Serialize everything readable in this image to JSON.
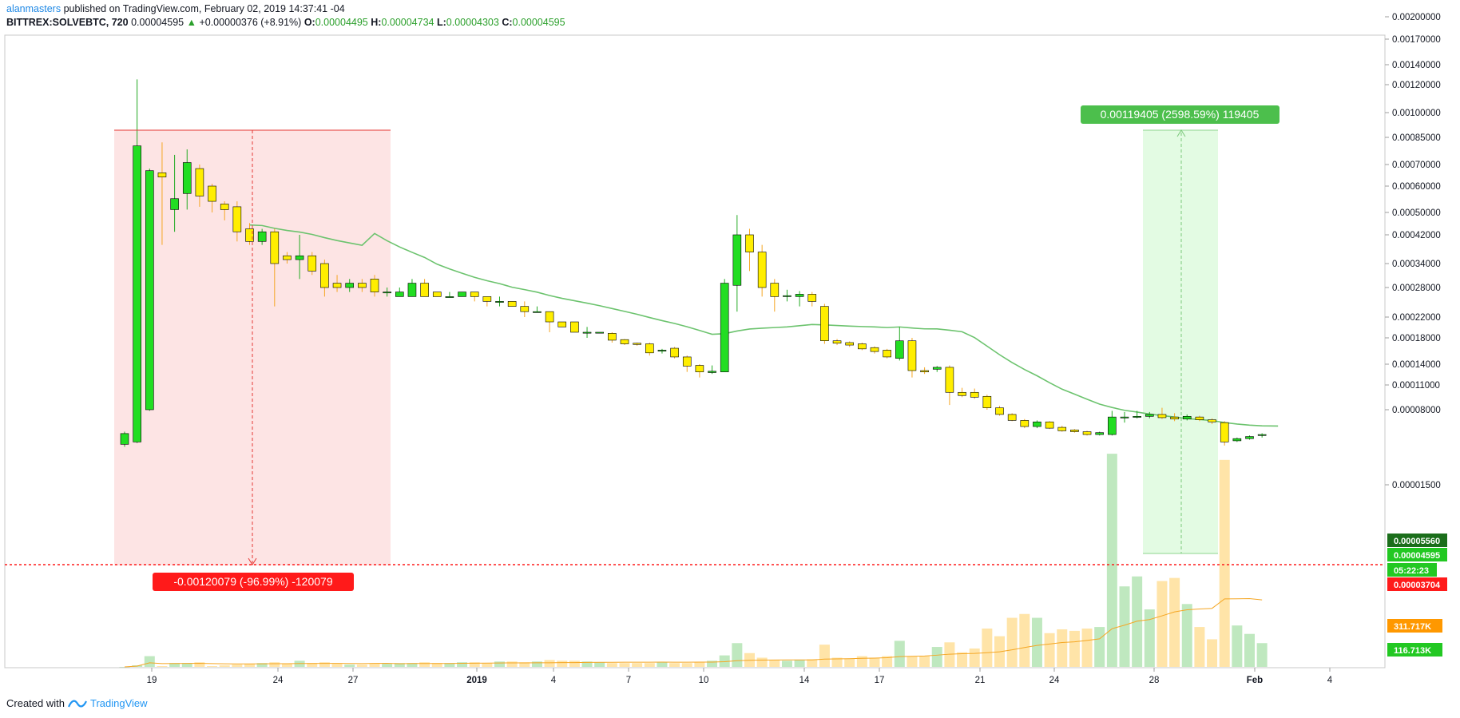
{
  "header": {
    "user": "alanmasters",
    "published_text": "published on TradingView.com, February 02, 2019 14:37:41 -04",
    "symbol": "BITTREX:SOLVEBTC, 720",
    "last": "0.00004595",
    "change": "+0.00000376 (+8.91%)",
    "o_label": "O:",
    "o_value": "0.00004495",
    "h_label": "H:",
    "h_value": "0.00004734",
    "l_label": "L:",
    "l_value": "0.00004303",
    "c_label": "C:",
    "c_value": "0.00004595"
  },
  "footer": {
    "created_with": "Created with",
    "brand": "TradingView"
  },
  "colors": {
    "up": "#22dd22",
    "down": "#ffee00",
    "down_wick": "#f5a623",
    "ma": "#6cc36e",
    "loss_fill": "#fde4e4",
    "loss_line": "#e53935",
    "gain_fill": "#e3fbe3",
    "red_tag": "#ff1a1a",
    "green_tag": "#22c822",
    "orange_tag": "#ff9800"
  },
  "chart_data": {
    "type": "candlestick",
    "y_scale": "log",
    "y_ticks": [
      "0.00200000",
      "0.00170000",
      "0.00140000",
      "0.00120000",
      "0.00100000",
      "0.00085000",
      "0.00070000",
      "0.00060000",
      "0.00050000",
      "0.00042000",
      "0.00034000",
      "0.00028000",
      "0.00022000",
      "0.00018000",
      "0.00014000",
      "0.00011000",
      "0.00008000",
      "0.00001500"
    ],
    "x_ticks": [
      "19",
      "24",
      "27",
      "2019",
      "4",
      "7",
      "10",
      "14",
      "17",
      "21",
      "24",
      "28",
      "Feb",
      "4"
    ],
    "price_tags": {
      "ma_value": "0.00005560",
      "last_price": "0.00004595",
      "countdown": "05:22:23",
      "line_price": "0.00003704",
      "volume_ma": "311.717K",
      "volume": "116.713K"
    },
    "measure_loss": "-0.00120079 (-96.99%) -120079",
    "measure_gain": "0.00119405 (2598.59%) 119405",
    "candles": [
      [
        3.7e-05,
        4.7e-05,
        3.5e-05,
        4.9e-05
      ],
      [
        3.9e-05,
        0.0008,
        3.8e-05,
        0.00125
      ],
      [
        8e-05,
        0.00067,
        7.8e-05,
        0.00068
      ],
      [
        0.00066,
        0.00064,
        0.00039,
        0.00082
      ],
      [
        0.00051,
        0.00055,
        0.00043,
        0.00075
      ],
      [
        0.00057,
        0.00071,
        0.00051,
        0.00078
      ],
      [
        0.00068,
        0.00056,
        0.00052,
        0.0007
      ],
      [
        0.0006,
        0.00054,
        0.0005,
        0.00061
      ],
      [
        0.00053,
        0.00051,
        0.00047,
        0.00054
      ],
      [
        0.00052,
        0.00043,
        0.0004,
        0.00054
      ],
      [
        0.00044,
        0.0004,
        0.00039,
        0.00046
      ],
      [
        0.0004,
        0.00043,
        0.00039,
        0.00044
      ],
      [
        0.00043,
        0.00034,
        0.00024,
        0.00044
      ],
      [
        0.00036,
        0.00035,
        0.00034,
        0.00037
      ],
      [
        0.00035,
        0.00036,
        0.0003,
        0.00042
      ],
      [
        0.00036,
        0.00032,
        0.00031,
        0.00037
      ],
      [
        0.00034,
        0.00028,
        0.00026,
        0.00035
      ],
      [
        0.00029,
        0.00028,
        0.00027,
        0.00031
      ],
      [
        0.00028,
        0.00029,
        0.00027,
        0.0003
      ],
      [
        0.00029,
        0.00028,
        0.00027,
        0.0003
      ],
      [
        0.0003,
        0.00027,
        0.00026,
        0.00031
      ],
      [
        0.00027,
        0.00027,
        0.00026,
        0.00028
      ],
      [
        0.00026,
        0.00027,
        0.00026,
        0.00028
      ],
      [
        0.00026,
        0.00029,
        0.00026,
        0.0003
      ],
      [
        0.00029,
        0.00026,
        0.00026,
        0.0003
      ],
      [
        0.00027,
        0.00026,
        0.00026,
        0.00027
      ],
      [
        0.00026,
        0.00026,
        0.00026,
        0.00027
      ],
      [
        0.00026,
        0.00027,
        0.00026,
        0.00027
      ],
      [
        0.00027,
        0.00026,
        0.00025,
        0.00027
      ],
      [
        0.00026,
        0.00025,
        0.00024,
        0.00026
      ],
      [
        0.00025,
        0.00025,
        0.00024,
        0.00026
      ],
      [
        0.00025,
        0.00024,
        0.00024,
        0.00025
      ],
      [
        0.00024,
        0.00023,
        0.00022,
        0.00025
      ],
      [
        0.00023,
        0.00023,
        0.00023,
        0.00024
      ],
      [
        0.00023,
        0.00021,
        0.00019,
        0.00023
      ],
      [
        0.00021,
        0.0002,
        0.0002,
        0.00021
      ],
      [
        0.00021,
        0.00019,
        0.00019,
        0.00021
      ],
      [
        0.00019,
        0.00019,
        0.00018,
        0.0002
      ],
      [
        0.00019,
        0.00019,
        0.00019,
        0.00019
      ],
      [
        0.000188,
        0.000176,
        0.000172,
        0.00019
      ],
      [
        0.000177,
        0.00017,
        0.000168,
        0.000178
      ],
      [
        0.000171,
        0.000169,
        0.000167,
        0.000172
      ],
      [
        0.00017,
        0.000156,
        0.000152,
        0.000172
      ],
      [
        0.000159,
        0.00016,
        0.000155,
        0.000162
      ],
      [
        0.000163,
        0.00015,
        0.000148,
        0.000165
      ],
      [
        0.00015,
        0.000137,
        0.000128,
        0.000152
      ],
      [
        0.000138,
        0.000128,
        0.00012,
        0.00014
      ],
      [
        0.000127,
        0.000129,
        0.000125,
        0.000138
      ],
      [
        0.000128,
        0.00029,
        0.000128,
        0.0003
      ],
      [
        0.000285,
        0.00042,
        0.00023,
        0.00049
      ],
      [
        0.00042,
        0.00037,
        0.00032,
        0.00044
      ],
      [
        0.00037,
        0.00028,
        0.00026,
        0.00039
      ],
      [
        0.00029,
        0.00026,
        0.00023,
        0.0003
      ],
      [
        0.000262,
        0.000262,
        0.00025,
        0.000275
      ],
      [
        0.00026,
        0.000265,
        0.00024,
        0.000272
      ],
      [
        0.000265,
        0.00025,
        0.00024,
        0.00027
      ],
      [
        0.00024,
        0.000175,
        0.00017,
        0.000245
      ],
      [
        0.000175,
        0.000171,
        0.000168,
        0.000178
      ],
      [
        0.000172,
        0.000168,
        0.000165,
        0.000174
      ],
      [
        0.00017,
        0.000162,
        0.00016,
        0.000172
      ],
      [
        0.000164,
        0.000158,
        0.000155,
        0.000166
      ],
      [
        0.00016,
        0.00015,
        0.000148,
        0.000162
      ],
      [
        0.000148,
        0.000175,
        0.000145,
        0.0002
      ],
      [
        0.000175,
        0.00013,
        0.00012,
        0.00018
      ],
      [
        0.00013,
        0.000128,
        0.000125,
        0.000135
      ],
      [
        0.000132,
        0.000135,
        0.000128,
        0.000137
      ],
      [
        0.000135,
        0.0001,
        8.5e-05,
        0.000138
      ],
      [
        0.0001,
        9.6e-05,
        9.4e-05,
        0.000106
      ],
      [
        0.0001,
        9.4e-05,
        9.2e-05,
        0.000105
      ],
      [
        9.5e-05,
        8.2e-05,
        8e-05,
        9.7e-05
      ],
      [
        8.2e-05,
        7.2e-05,
        7e-05,
        8.4e-05
      ],
      [
        7.2e-05,
        6.3e-05,
        6.2e-05,
        7.4e-05
      ],
      [
        6.3e-05,
        5.5e-05,
        5.3e-05,
        6.5e-05
      ],
      [
        5.5e-05,
        6.1e-05,
        5.3e-05,
        6.3e-05
      ],
      [
        6.1e-05,
        5.3e-05,
        5.2e-05,
        6.2e-05
      ],
      [
        5.4e-05,
        5e-05,
        4.9e-05,
        5.6e-05
      ],
      [
        5.1e-05,
        4.9e-05,
        4.8e-05,
        5.2e-05
      ],
      [
        4.9e-05,
        4.6e-05,
        4.5e-05,
        5e-05
      ],
      [
        4.6e-05,
        4.8e-05,
        4.5e-05,
        4.9e-05
      ],
      [
        4.6e-05,
        6.8e-05,
        4.5e-05,
        7.8e-05
      ],
      [
        6.8e-05,
        6.8e-05,
        6e-05,
        7.6e-05
      ],
      [
        6.8e-05,
        6.9e-05,
        6.6e-05,
        7.8e-05
      ],
      [
        6.9e-05,
        7.2e-05,
        6.6e-05,
        7.6e-05
      ],
      [
        7.2e-05,
        6.7e-05,
        6.5e-05,
        8.2e-05
      ],
      [
        6.8e-05,
        6.5e-05,
        6.2e-05,
        7.4e-05
      ],
      [
        6.5e-05,
        6.9e-05,
        6.3e-05,
        7.2e-05
      ],
      [
        6.8e-05,
        6.4e-05,
        6.2e-05,
        7e-05
      ],
      [
        6.4e-05,
        6.1e-05,
        5.8e-05,
        6.6e-05
      ],
      [
        6e-05,
        3.9e-05,
        3.6e-05,
        6.2e-05
      ],
      [
        4e-05,
        4.2e-05,
        3.9e-05,
        4.3e-05
      ],
      [
        4.2e-05,
        4.4e-05,
        4.1e-05,
        4.5e-05
      ],
      [
        4.5e-05,
        4.6e-05,
        4.3e-05,
        4.73e-05
      ]
    ],
    "volumes": [
      0,
      0.2,
      1.4,
      0.1,
      0.5,
      0.5,
      0.6,
      0.1,
      0.2,
      0.3,
      0.4,
      0.5,
      0.6,
      0.4,
      0.8,
      0.5,
      0.6,
      0.4,
      0.3,
      0.3,
      0.4,
      0.4,
      0.5,
      0.5,
      0.6,
      0.5,
      0.5,
      0.6,
      0.6,
      0.5,
      0.7,
      0.7,
      0.6,
      0.7,
      0.9,
      0.8,
      0.8,
      0.7,
      0.6,
      0.5,
      0.5,
      0.5,
      0.5,
      0.6,
      0.5,
      0.5,
      0.6,
      0.8,
      1.5,
      3.1,
      1.8,
      1.2,
      0.9,
      0.8,
      0.9,
      1.0,
      2.9,
      1.2,
      1.1,
      1.4,
      1.2,
      1.4,
      3.4,
      1.4,
      1.4,
      2.6,
      3.2,
      1.9,
      2.4,
      5.0,
      4.0,
      6.4,
      6.9,
      6.4,
      4.4,
      4.9,
      4.7,
      5.0,
      5.2,
      27.8,
      10.5,
      11.8,
      7.5,
      11.2,
      11.6,
      8.2,
      5.2,
      3.6,
      27.0,
      5.4,
      4.3,
      3.1
    ]
  }
}
